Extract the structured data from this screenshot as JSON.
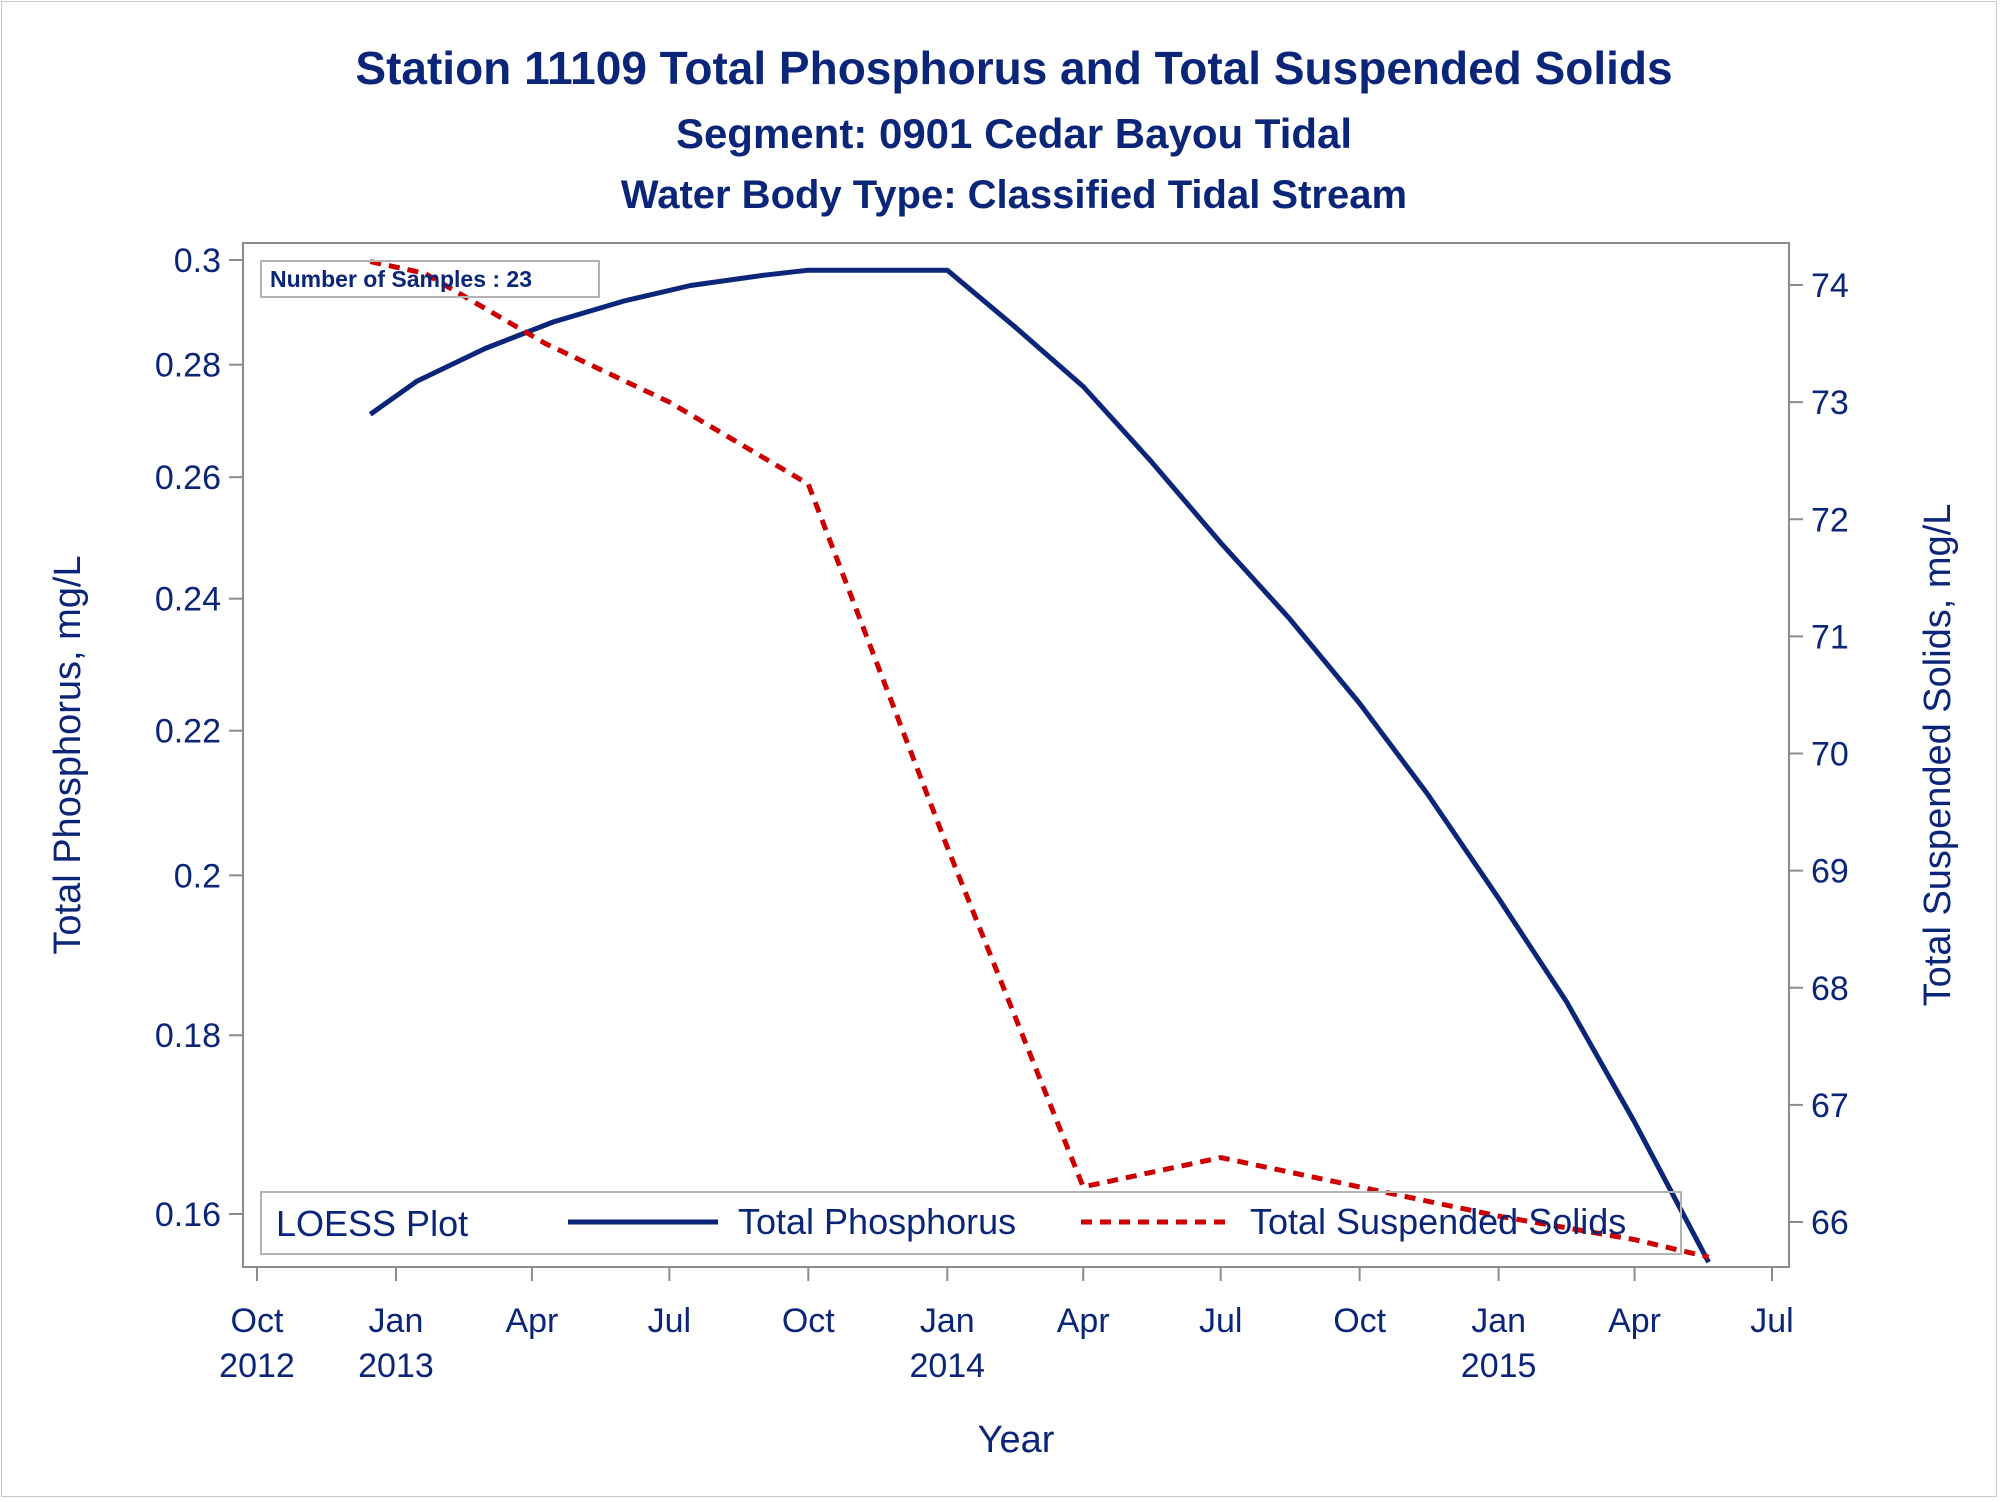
{
  "chart_data": {
    "type": "line",
    "title": "Station 11109  Total Phosphorus and Total Suspended Solids",
    "subtitle": "Segment: 0901  Cedar Bayou Tidal",
    "subtitle2": "Water Body Type: Classified Tidal Stream",
    "xlabel": "Year",
    "ylabel": "Total Phosphorus, mg/L",
    "y2label": "Total Suspended Solids, mg/L",
    "annotation": "Number of Samples : 23",
    "legend": {
      "title": "LOESS Plot",
      "entries": [
        "Total Phosphorus",
        "Total Suspended Solids"
      ],
      "placement": "bottom-inside"
    },
    "x_range": [
      "2012-10-01",
      "2015-07-01"
    ],
    "x_ticks": [
      {
        "month": "Oct",
        "year": "2012",
        "date": "2012-10-01"
      },
      {
        "month": "Jan",
        "year": "2013",
        "date": "2013-01-01"
      },
      {
        "month": "Apr",
        "year": "",
        "date": "2013-04-01"
      },
      {
        "month": "Jul",
        "year": "",
        "date": "2013-07-01"
      },
      {
        "month": "Oct",
        "year": "",
        "date": "2013-10-01"
      },
      {
        "month": "Jan",
        "year": "2014",
        "date": "2014-01-01"
      },
      {
        "month": "Apr",
        "year": "",
        "date": "2014-04-01"
      },
      {
        "month": "Jul",
        "year": "",
        "date": "2014-07-01"
      },
      {
        "month": "Oct",
        "year": "",
        "date": "2014-10-01"
      },
      {
        "month": "Jan",
        "year": "2015",
        "date": "2015-01-01"
      },
      {
        "month": "Apr",
        "year": "",
        "date": "2015-04-01"
      },
      {
        "month": "Jul",
        "year": "",
        "date": "2015-07-01"
      }
    ],
    "y_scale": "log",
    "ylim": [
      0.155,
      0.302
    ],
    "y_ticks": [
      "0.16",
      "0.18",
      "0.2",
      "0.22",
      "0.24",
      "0.26",
      "0.28",
      "0.3"
    ],
    "y2lim": [
      65.6,
      74.3
    ],
    "y2_ticks": [
      "66",
      "67",
      "68",
      "69",
      "70",
      "71",
      "72",
      "73",
      "74"
    ],
    "grid": false,
    "series": [
      {
        "name": "Total Phosphorus",
        "axis": "left",
        "color": "#0b2679",
        "style": "solid",
        "points": [
          {
            "x": "2012-12-15",
            "y": 0.271
          },
          {
            "x": "2013-01-15",
            "y": 0.277
          },
          {
            "x": "2013-03-01",
            "y": 0.283
          },
          {
            "x": "2013-04-15",
            "y": 0.288
          },
          {
            "x": "2013-06-01",
            "y": 0.292
          },
          {
            "x": "2013-07-15",
            "y": 0.295
          },
          {
            "x": "2013-09-01",
            "y": 0.297
          },
          {
            "x": "2013-10-01",
            "y": 0.298
          },
          {
            "x": "2013-11-01",
            "y": 0.298
          },
          {
            "x": "2013-12-01",
            "y": 0.298
          },
          {
            "x": "2014-01-01",
            "y": 0.298
          },
          {
            "x": "2014-02-15",
            "y": 0.287
          },
          {
            "x": "2014-04-01",
            "y": 0.276
          },
          {
            "x": "2014-05-15",
            "y": 0.263
          },
          {
            "x": "2014-07-01",
            "y": 0.249
          },
          {
            "x": "2014-08-15",
            "y": 0.237
          },
          {
            "x": "2014-10-01",
            "y": 0.224
          },
          {
            "x": "2014-11-15",
            "y": 0.211
          },
          {
            "x": "2015-01-01",
            "y": 0.197
          },
          {
            "x": "2015-02-15",
            "y": 0.184
          },
          {
            "x": "2015-04-01",
            "y": 0.17
          },
          {
            "x": "2015-05-20",
            "y": 0.155
          }
        ]
      },
      {
        "name": "Total Suspended Solids",
        "axis": "right",
        "color": "#cc0000",
        "style": "dashed",
        "points": [
          {
            "x": "2012-12-15",
            "y": 74.2
          },
          {
            "x": "2013-01-20",
            "y": 74.1
          },
          {
            "x": "2013-04-10",
            "y": 73.5
          },
          {
            "x": "2013-07-01",
            "y": 73.0
          },
          {
            "x": "2013-10-01",
            "y": 72.3
          },
          {
            "x": "2014-01-01",
            "y": 69.2
          },
          {
            "x": "2014-04-01",
            "y": 66.3
          },
          {
            "x": "2014-07-01",
            "y": 66.55
          },
          {
            "x": "2014-10-01",
            "y": 66.3
          },
          {
            "x": "2015-01-01",
            "y": 66.05
          },
          {
            "x": "2015-04-01",
            "y": 65.85
          },
          {
            "x": "2015-05-20",
            "y": 65.7
          }
        ]
      }
    ]
  }
}
